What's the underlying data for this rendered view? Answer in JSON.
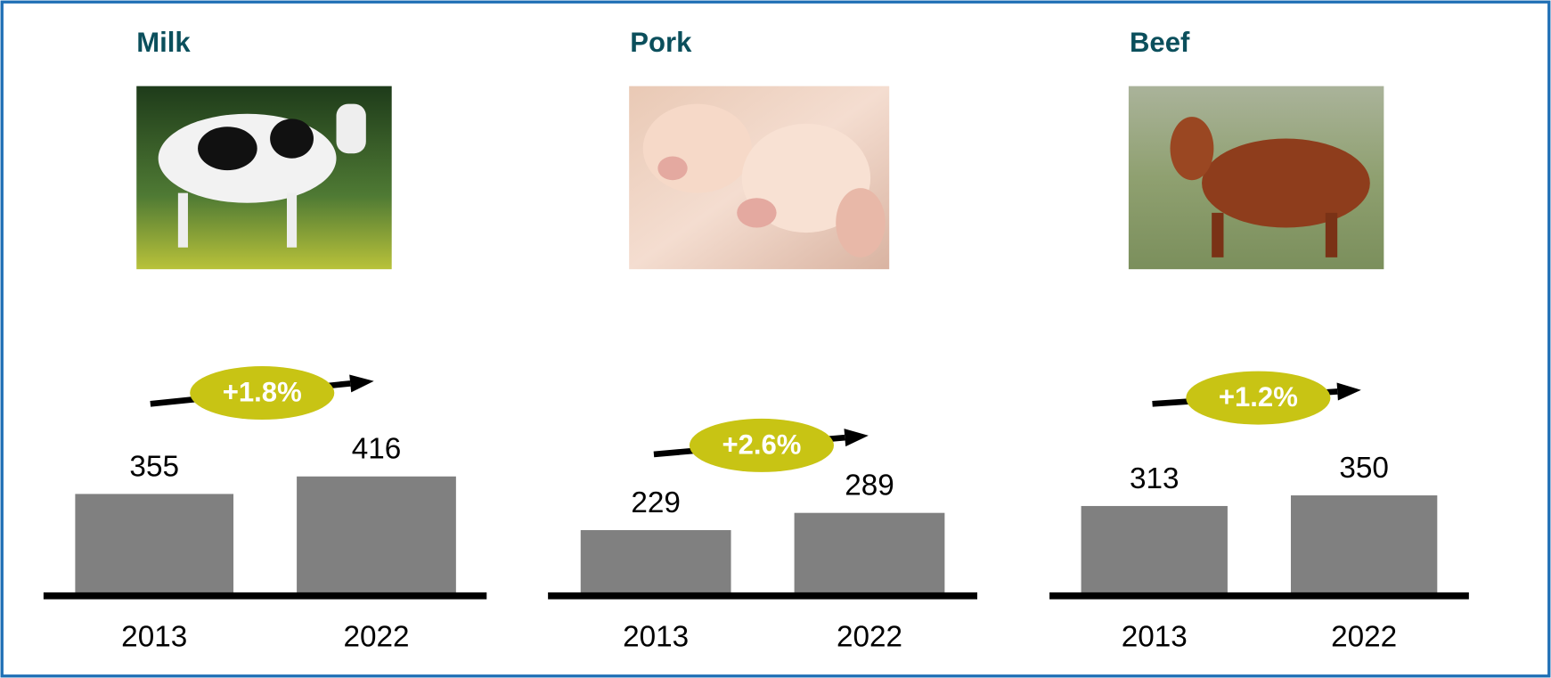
{
  "chart_data": [
    {
      "type": "bar",
      "title": "Milk",
      "categories": [
        "2013",
        "2022"
      ],
      "values": [
        355,
        416
      ],
      "color": "#808080",
      "annotation": "+1.8%"
    },
    {
      "type": "bar",
      "title": "Pork",
      "categories": [
        "2013",
        "2022"
      ],
      "values": [
        229,
        289
      ],
      "color": "#808080",
      "annotation": "+2.6%"
    },
    {
      "type": "bar",
      "title": "Beef",
      "categories": [
        "2013",
        "2022"
      ],
      "values": [
        313,
        350
      ],
      "color": "#808080",
      "annotation": "+1.2%"
    }
  ]
}
